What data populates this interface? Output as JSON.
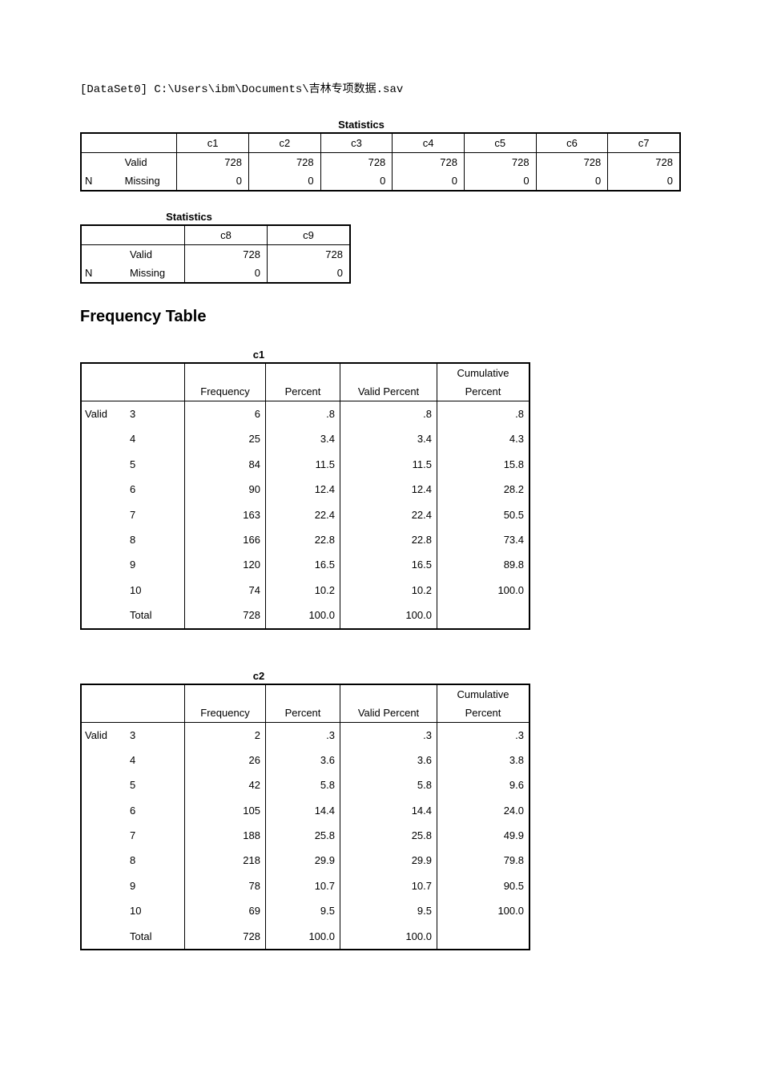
{
  "dataset_prefix": "[DataSet0] C:\\Users\\ibm\\Documents\\",
  "dataset_cjk": "吉林专项数据",
  "dataset_suffix": ".sav",
  "stats_title": "Statistics",
  "stats1": {
    "columns": [
      "c1",
      "c2",
      "c3",
      "c4",
      "c5",
      "c6",
      "c7"
    ],
    "row_labels": {
      "n": "N",
      "valid": "Valid",
      "missing": "Missing"
    },
    "valid": [
      "728",
      "728",
      "728",
      "728",
      "728",
      "728",
      "728"
    ],
    "missing": [
      "0",
      "0",
      "0",
      "0",
      "0",
      "0",
      "0"
    ]
  },
  "stats2": {
    "columns": [
      "c8",
      "c9"
    ],
    "valid": [
      "728",
      "728"
    ],
    "missing": [
      "0",
      "0"
    ]
  },
  "freq_heading": "Frequency Table",
  "freq_headers": {
    "frequency": "Frequency",
    "percent": "Percent",
    "valid_percent": "Valid Percent",
    "cumulative_percent_top": "Cumulative",
    "cumulative_percent_bot": "Percent",
    "valid": "Valid",
    "total": "Total"
  },
  "freq_tables": [
    {
      "name": "c1",
      "rows": [
        {
          "val": "3",
          "freq": "6",
          "pct": ".8",
          "vpct": ".8",
          "cpct": ".8"
        },
        {
          "val": "4",
          "freq": "25",
          "pct": "3.4",
          "vpct": "3.4",
          "cpct": "4.3"
        },
        {
          "val": "5",
          "freq": "84",
          "pct": "11.5",
          "vpct": "11.5",
          "cpct": "15.8"
        },
        {
          "val": "6",
          "freq": "90",
          "pct": "12.4",
          "vpct": "12.4",
          "cpct": "28.2"
        },
        {
          "val": "7",
          "freq": "163",
          "pct": "22.4",
          "vpct": "22.4",
          "cpct": "50.5"
        },
        {
          "val": "8",
          "freq": "166",
          "pct": "22.8",
          "vpct": "22.8",
          "cpct": "73.4"
        },
        {
          "val": "9",
          "freq": "120",
          "pct": "16.5",
          "vpct": "16.5",
          "cpct": "89.8"
        },
        {
          "val": "10",
          "freq": "74",
          "pct": "10.2",
          "vpct": "10.2",
          "cpct": "100.0"
        }
      ],
      "total": {
        "freq": "728",
        "pct": "100.0",
        "vpct": "100.0"
      }
    },
    {
      "name": "c2",
      "rows": [
        {
          "val": "3",
          "freq": "2",
          "pct": ".3",
          "vpct": ".3",
          "cpct": ".3"
        },
        {
          "val": "4",
          "freq": "26",
          "pct": "3.6",
          "vpct": "3.6",
          "cpct": "3.8"
        },
        {
          "val": "5",
          "freq": "42",
          "pct": "5.8",
          "vpct": "5.8",
          "cpct": "9.6"
        },
        {
          "val": "6",
          "freq": "105",
          "pct": "14.4",
          "vpct": "14.4",
          "cpct": "24.0"
        },
        {
          "val": "7",
          "freq": "188",
          "pct": "25.8",
          "vpct": "25.8",
          "cpct": "49.9"
        },
        {
          "val": "8",
          "freq": "218",
          "pct": "29.9",
          "vpct": "29.9",
          "cpct": "79.8"
        },
        {
          "val": "9",
          "freq": "78",
          "pct": "10.7",
          "vpct": "10.7",
          "cpct": "90.5"
        },
        {
          "val": "10",
          "freq": "69",
          "pct": "9.5",
          "vpct": "9.5",
          "cpct": "100.0"
        }
      ],
      "total": {
        "freq": "728",
        "pct": "100.0",
        "vpct": "100.0"
      }
    }
  ]
}
